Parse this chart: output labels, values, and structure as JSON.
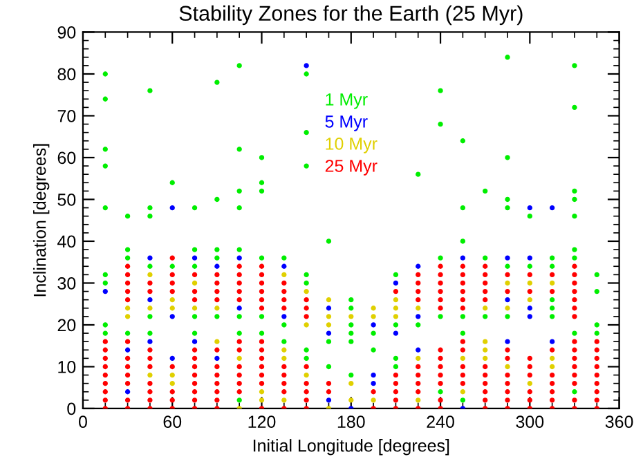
{
  "chart_data": {
    "type": "scatter",
    "title": "Stability Zones for the Earth (25 Myr)",
    "xlabel": "Initial Longitude [degrees]",
    "ylabel": "Inclination [degrees]",
    "xlim": [
      0,
      360
    ],
    "xticks": [
      0,
      60,
      120,
      180,
      240,
      300,
      360
    ],
    "ylim": [
      0,
      90
    ],
    "yticks": [
      0,
      10,
      20,
      30,
      40,
      50,
      60,
      70,
      80,
      90
    ],
    "marker": "circle",
    "grid": false,
    "legend": "top",
    "series": [
      {
        "name": "1 Myr",
        "color": "#00ee00",
        "x": [
          15,
          15,
          15,
          15,
          15,
          15,
          15,
          15,
          15,
          30,
          30,
          30,
          30,
          45,
          45,
          45,
          45,
          45,
          45,
          60,
          60,
          75,
          75,
          75,
          75,
          75,
          90,
          90,
          90,
          90,
          90,
          105,
          105,
          105,
          105,
          105,
          105,
          105,
          105,
          120,
          120,
          120,
          120,
          120,
          120,
          135,
          135,
          135,
          150,
          150,
          150,
          150,
          150,
          150,
          150,
          165,
          165,
          165,
          180,
          180,
          180,
          180,
          180,
          180,
          195,
          195,
          210,
          210,
          210,
          210,
          225,
          225,
          240,
          240,
          240,
          240,
          240,
          255,
          255,
          255,
          255,
          255,
          255,
          270,
          270,
          270,
          285,
          285,
          285,
          285,
          285,
          285,
          300,
          300,
          315,
          315,
          315,
          315,
          315,
          330,
          330,
          330,
          330,
          330,
          330,
          330,
          330,
          330,
          345,
          345,
          345,
          345
        ],
        "values": [
          80,
          74,
          62,
          58,
          48,
          32,
          30,
          20,
          18,
          46,
          38,
          36,
          18,
          76,
          48,
          46,
          34,
          22,
          18,
          54,
          34,
          48,
          38,
          34,
          22,
          18,
          78,
          50,
          38,
          36,
          22,
          82,
          62,
          52,
          48,
          38,
          22,
          18,
          2,
          60,
          54,
          52,
          36,
          22,
          18,
          36,
          20,
          16,
          80,
          66,
          58,
          32,
          30,
          14,
          12,
          40,
          16,
          10,
          26,
          24,
          20,
          18,
          16,
          8,
          18,
          14,
          32,
          20,
          12,
          10,
          56,
          20,
          76,
          68,
          36,
          22,
          4,
          64,
          48,
          40,
          22,
          18,
          2,
          52,
          36,
          22,
          84,
          60,
          50,
          48,
          34,
          22,
          46,
          34,
          36,
          34,
          26,
          24,
          22,
          82,
          72,
          52,
          50,
          46,
          38,
          36,
          18,
          4,
          32,
          28,
          20,
          18
        ]
      },
      {
        "name": "5 Myr",
        "color": "#0000ff",
        "x": [
          15,
          30,
          30,
          45,
          45,
          45,
          60,
          60,
          60,
          75,
          75,
          90,
          90,
          105,
          105,
          135,
          135,
          150,
          165,
          165,
          165,
          180,
          195,
          195,
          195,
          210,
          210,
          225,
          225,
          225,
          255,
          255,
          285,
          285,
          285,
          300,
          300,
          300,
          300,
          315,
          315
        ],
        "values": [
          28,
          14,
          4,
          36,
          26,
          16,
          48,
          22,
          12,
          36,
          16,
          34,
          12,
          36,
          24,
          34,
          22,
          82,
          24,
          18,
          2,
          0,
          20,
          8,
          6,
          30,
          18,
          34,
          22,
          14,
          36,
          0,
          36,
          26,
          16,
          48,
          36,
          24,
          22,
          48,
          16
        ]
      },
      {
        "name": "10 Myr",
        "color": "#e0d000",
        "x": [
          30,
          30,
          45,
          45,
          45,
          60,
          60,
          60,
          60,
          75,
          75,
          90,
          90,
          105,
          105,
          120,
          120,
          135,
          135,
          135,
          135,
          150,
          150,
          150,
          165,
          165,
          165,
          165,
          180,
          180,
          180,
          195,
          195,
          195,
          210,
          210,
          210,
          225,
          225,
          225,
          255,
          255,
          270,
          270,
          270,
          270,
          285,
          285,
          285,
          300,
          300,
          300,
          315,
          315,
          315
        ],
        "values": [
          24,
          22,
          32,
          24,
          8,
          26,
          24,
          8,
          6,
          30,
          24,
          24,
          16,
          12,
          0,
          4,
          2,
          32,
          14,
          12,
          2,
          28,
          20,
          8,
          26,
          22,
          20,
          0,
          22,
          6,
          2,
          24,
          22,
          2,
          26,
          24,
          22,
          24,
          12,
          2,
          12,
          4,
          24,
          16,
          14,
          12,
          30,
          24,
          10,
          30,
          26,
          6,
          30,
          12,
          10
        ]
      },
      {
        "name": "25 Myr",
        "color": "#ff0000",
        "x": [
          15,
          15,
          15,
          15,
          15,
          15,
          15,
          15,
          15,
          30,
          30,
          30,
          30,
          30,
          30,
          30,
          30,
          30,
          30,
          30,
          30,
          45,
          45,
          45,
          45,
          45,
          45,
          45,
          45,
          45,
          60,
          60,
          60,
          60,
          60,
          60,
          60,
          60,
          75,
          75,
          75,
          75,
          75,
          75,
          75,
          75,
          75,
          75,
          75,
          90,
          90,
          90,
          90,
          90,
          90,
          90,
          90,
          90,
          90,
          90,
          105,
          105,
          105,
          105,
          105,
          105,
          105,
          105,
          105,
          105,
          105,
          120,
          120,
          120,
          120,
          120,
          120,
          120,
          120,
          120,
          120,
          120,
          120,
          120,
          135,
          135,
          135,
          135,
          135,
          135,
          135,
          135,
          135,
          150,
          150,
          150,
          150,
          150,
          150,
          150,
          150,
          165,
          165,
          195,
          195,
          210,
          210,
          210,
          210,
          210,
          210,
          225,
          225,
          225,
          225,
          225,
          225,
          225,
          225,
          225,
          240,
          240,
          240,
          240,
          240,
          240,
          240,
          240,
          240,
          240,
          240,
          240,
          240,
          255,
          255,
          255,
          255,
          255,
          255,
          255,
          255,
          255,
          255,
          255,
          270,
          270,
          270,
          270,
          270,
          270,
          270,
          270,
          270,
          270,
          270,
          285,
          285,
          285,
          285,
          285,
          285,
          285,
          285,
          285,
          300,
          300,
          300,
          300,
          300,
          300,
          300,
          300,
          315,
          315,
          315,
          315,
          315,
          315,
          315,
          315,
          330,
          330,
          330,
          330,
          330,
          330,
          330,
          330,
          330,
          330,
          330,
          330,
          330,
          330,
          330,
          345,
          345,
          345,
          345,
          345,
          345,
          345,
          345,
          345
        ],
        "values": [
          16,
          14,
          12,
          10,
          8,
          6,
          4,
          2,
          0,
          34,
          32,
          30,
          28,
          26,
          16,
          12,
          10,
          8,
          6,
          2,
          0,
          30,
          28,
          14,
          12,
          10,
          6,
          4,
          2,
          0,
          36,
          32,
          30,
          28,
          10,
          4,
          2,
          0,
          32,
          28,
          26,
          14,
          12,
          10,
          8,
          6,
          4,
          2,
          0,
          32,
          30,
          28,
          26,
          14,
          10,
          8,
          6,
          4,
          2,
          0,
          34,
          32,
          30,
          28,
          26,
          16,
          14,
          10,
          8,
          6,
          4,
          34,
          32,
          30,
          28,
          26,
          24,
          16,
          14,
          12,
          10,
          8,
          6,
          0,
          30,
          28,
          26,
          24,
          10,
          8,
          6,
          4,
          0,
          26,
          24,
          22,
          10,
          6,
          4,
          2,
          0,
          6,
          4,
          4,
          0,
          28,
          8,
          6,
          4,
          2,
          0,
          32,
          30,
          28,
          26,
          10,
          8,
          6,
          4,
          0,
          34,
          32,
          30,
          28,
          26,
          24,
          14,
          12,
          10,
          8,
          6,
          2,
          0,
          34,
          32,
          30,
          28,
          26,
          24,
          16,
          14,
          10,
          8,
          6,
          34,
          32,
          30,
          28,
          26,
          10,
          8,
          6,
          4,
          2,
          0,
          32,
          28,
          14,
          12,
          8,
          6,
          4,
          2,
          0,
          32,
          28,
          12,
          10,
          8,
          4,
          2,
          0,
          32,
          28,
          14,
          8,
          6,
          4,
          2,
          0,
          34,
          32,
          30,
          28,
          26,
          24,
          22,
          16,
          14,
          12,
          10,
          8,
          6,
          2,
          0,
          16,
          14,
          12,
          10,
          8,
          6,
          4,
          2,
          0
        ]
      }
    ]
  }
}
